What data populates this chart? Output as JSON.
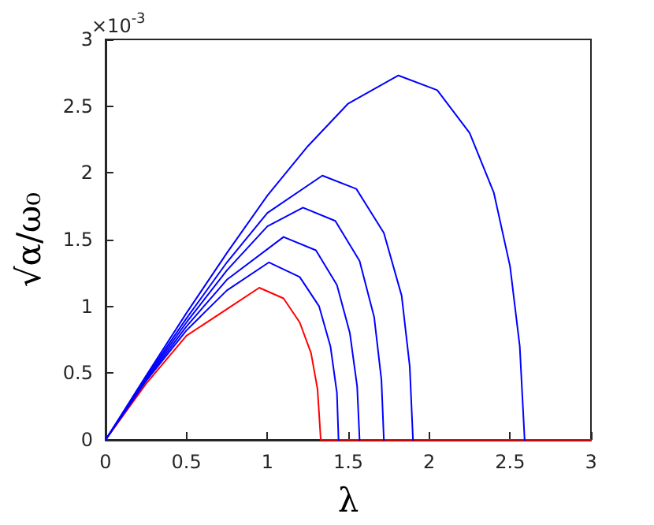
{
  "chart_data": {
    "type": "line",
    "xlabel": "λ",
    "ylabel": "√α/ω₀",
    "annotations": [
      "×10$^{-3}$"
    ],
    "xlim": [
      0,
      3
    ],
    "xticks": [
      0,
      0.5,
      1,
      1.5,
      2,
      2.5,
      3
    ],
    "ylim": [
      0,
      3
    ],
    "yticks": [
      0,
      0.5,
      1,
      1.5,
      2,
      2.5,
      3
    ],
    "grid": false,
    "marker": "none",
    "line_style": "solid",
    "series": [
      {
        "color": "#ff0000",
        "x": [
          0,
          0.25,
          0.5,
          0.75,
          0.95,
          1.1,
          1.2,
          1.27,
          1.31,
          1.33,
          3
        ],
        "values": [
          0,
          0.42,
          0.78,
          0.98,
          1.14,
          1.06,
          0.88,
          0.65,
          0.38,
          0,
          0
        ]
      },
      {
        "color": "#0000ff",
        "x": [
          0,
          0.25,
          0.5,
          0.75,
          1.01,
          1.2,
          1.32,
          1.39,
          1.43,
          1.44
        ],
        "values": [
          0,
          0.44,
          0.82,
          1.12,
          1.33,
          1.22,
          1.0,
          0.7,
          0.35,
          0
        ]
      },
      {
        "color": "#0000ff",
        "x": [
          0,
          0.25,
          0.5,
          0.75,
          1.1,
          1.3,
          1.43,
          1.51,
          1.555,
          1.57
        ],
        "values": [
          0,
          0.45,
          0.85,
          1.2,
          1.52,
          1.42,
          1.16,
          0.8,
          0.4,
          0
        ]
      },
      {
        "color": "#0000ff",
        "x": [
          0,
          0.25,
          0.5,
          0.75,
          1.0,
          1.22,
          1.42,
          1.57,
          1.66,
          1.705,
          1.72
        ],
        "values": [
          0,
          0.46,
          0.88,
          1.27,
          1.6,
          1.74,
          1.64,
          1.34,
          0.92,
          0.45,
          0
        ]
      },
      {
        "color": "#0000ff",
        "x": [
          0,
          0.25,
          0.5,
          0.75,
          1.0,
          1.34,
          1.55,
          1.72,
          1.83,
          1.88,
          1.9
        ],
        "values": [
          0,
          0.47,
          0.91,
          1.33,
          1.7,
          1.98,
          1.88,
          1.55,
          1.08,
          0.55,
          0
        ]
      },
      {
        "color": "#0000ff",
        "x": [
          0,
          0.25,
          0.5,
          0.75,
          1.0,
          1.25,
          1.5,
          1.81,
          2.05,
          2.25,
          2.4,
          2.5,
          2.56,
          2.59
        ],
        "values": [
          0,
          0.48,
          0.95,
          1.4,
          1.83,
          2.2,
          2.52,
          2.73,
          2.62,
          2.3,
          1.85,
          1.3,
          0.7,
          0
        ]
      }
    ]
  }
}
